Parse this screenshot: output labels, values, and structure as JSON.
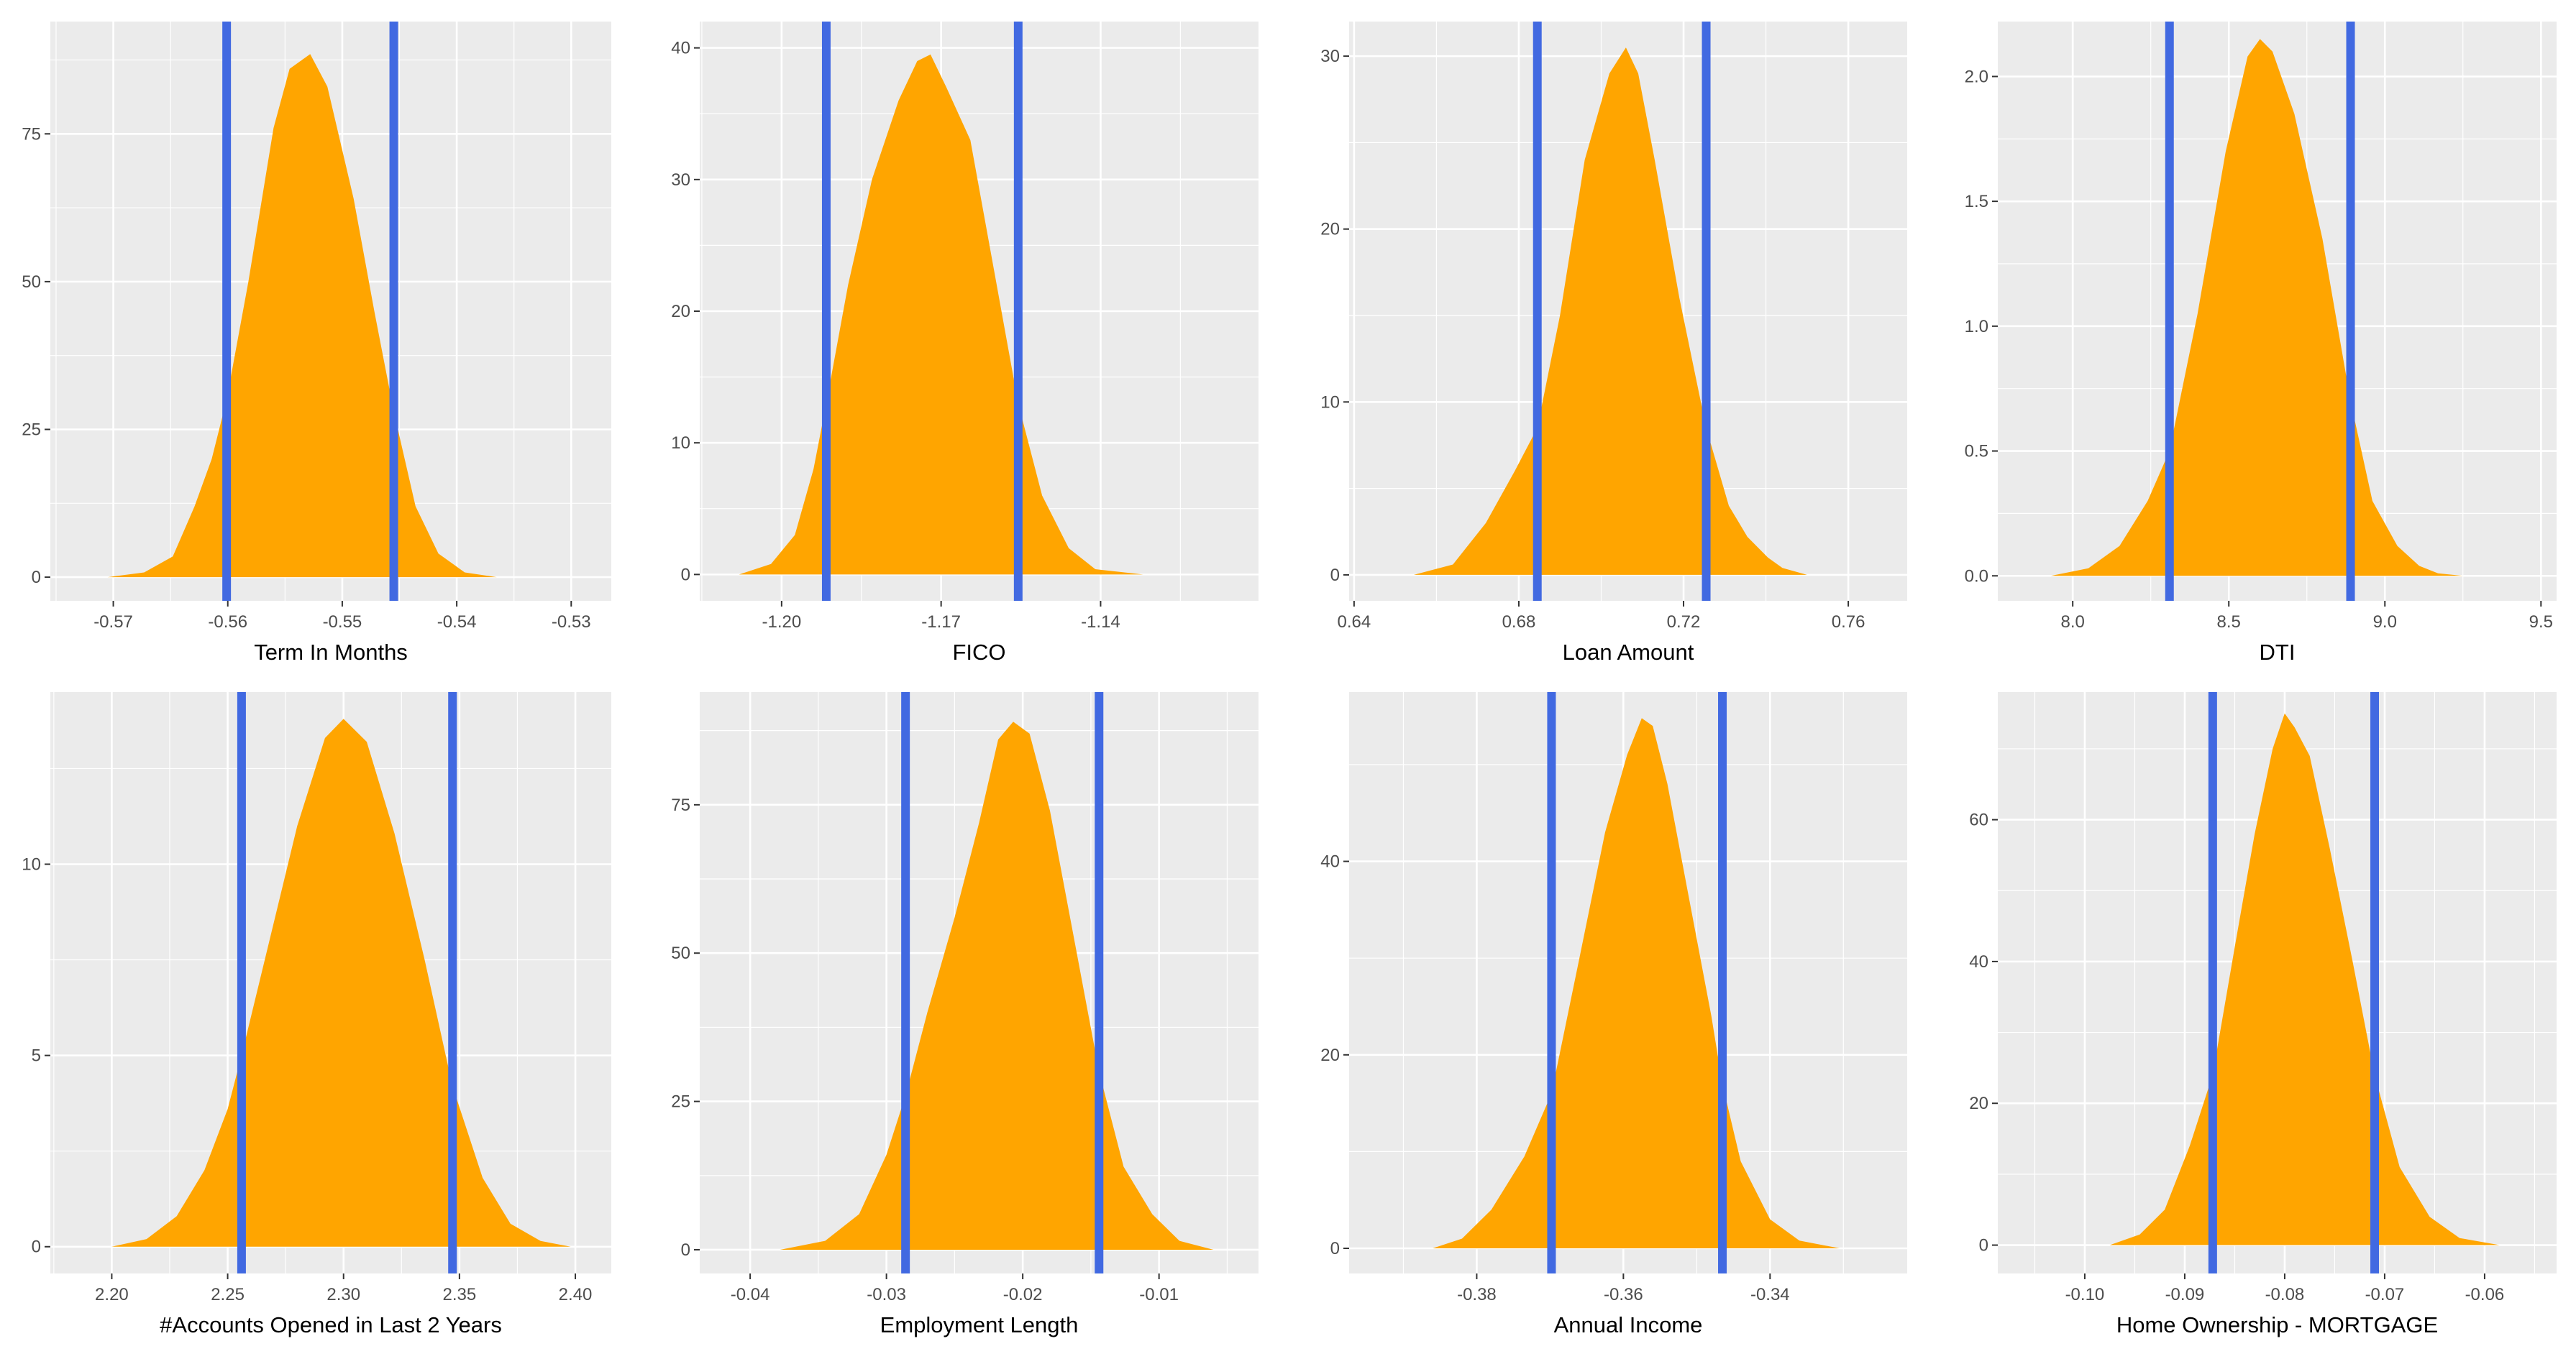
{
  "colors": {
    "density": "#ffa500",
    "ci_lines": "#4169e1",
    "panel": "#ebebeb",
    "grid": "#ffffff"
  },
  "chart_data": [
    {
      "type": "area",
      "xlabel": "Term In Months",
      "xticks": [
        -0.57,
        -0.56,
        -0.55,
        -0.54,
        -0.53
      ],
      "xtick_labels": [
        "-0.57",
        "-0.56",
        "-0.55",
        "-0.54",
        "-0.53"
      ],
      "yticks": [
        0,
        25,
        50,
        75
      ],
      "ytick_labels": [
        "0",
        "25",
        "50",
        "75"
      ],
      "xlim": [
        -0.5755,
        -0.5265
      ],
      "ylim": [
        -4,
        94
      ],
      "ci": [
        -0.5601,
        -0.5455
      ],
      "x": [
        -0.5705,
        -0.5673,
        -0.5648,
        -0.5629,
        -0.5614,
        -0.5601,
        -0.5582,
        -0.556,
        -0.5546,
        -0.5528,
        -0.5513,
        -0.549,
        -0.5472,
        -0.5455,
        -0.5436,
        -0.5416,
        -0.5393,
        -0.5365
      ],
      "y": [
        0,
        0.8,
        3.5,
        12,
        20,
        30,
        50,
        76,
        86,
        88.5,
        83,
        64,
        45,
        28,
        12,
        4,
        0.8,
        0
      ]
    },
    {
      "type": "area",
      "xlabel": "FICO",
      "xticks": [
        -1.2,
        -1.17,
        -1.14
      ],
      "xtick_labels": [
        "-1.20",
        "-1.17",
        "-1.14"
      ],
      "yticks": [
        0,
        10,
        20,
        30,
        40
      ],
      "ytick_labels": [
        "0",
        "10",
        "20",
        "30",
        "40"
      ],
      "xlim": [
        -1.2154,
        -1.1103
      ],
      "ylim": [
        -2,
        42
      ],
      "ci": [
        -1.1916,
        -1.1555
      ],
      "x": [
        -1.208,
        -1.202,
        -1.1975,
        -1.194,
        -1.1916,
        -1.1875,
        -1.183,
        -1.178,
        -1.1745,
        -1.172,
        -1.169,
        -1.1645,
        -1.16,
        -1.1555,
        -1.151,
        -1.146,
        -1.141,
        -1.132
      ],
      "y": [
        0,
        0.8,
        3,
        8,
        13,
        22,
        30,
        36,
        39,
        39.5,
        37,
        33,
        23,
        13,
        6,
        2,
        0.4,
        0
      ]
    },
    {
      "type": "area",
      "xlabel": "Loan Amount",
      "xticks": [
        0.64,
        0.68,
        0.72,
        0.76
      ],
      "xtick_labels": [
        "0.64",
        "0.68",
        "0.72",
        "0.76"
      ],
      "yticks": [
        0,
        10,
        20,
        30
      ],
      "ytick_labels": [
        "0",
        "10",
        "20",
        "30"
      ],
      "xlim": [
        0.6388,
        0.7743
      ],
      "ylim": [
        -1.5,
        32
      ],
      "ci": [
        0.6845,
        0.7255
      ],
      "x": [
        0.6545,
        0.664,
        0.672,
        0.679,
        0.6845,
        0.69,
        0.696,
        0.702,
        0.706,
        0.709,
        0.713,
        0.719,
        0.7255,
        0.731,
        0.7355,
        0.7405,
        0.744,
        0.75
      ],
      "y": [
        0,
        0.6,
        3,
        6,
        8.5,
        15,
        24,
        29,
        30.5,
        29,
        24,
        16,
        8.5,
        4,
        2.2,
        1,
        0.4,
        0
      ]
    },
    {
      "type": "area",
      "xlabel": "DTI",
      "xticks": [
        8.0,
        8.5,
        9.0,
        9.5
      ],
      "xtick_labels": [
        "8.0",
        "8.5",
        "9.0",
        "9.5"
      ],
      "yticks": [
        0.0,
        0.5,
        1.0,
        1.5,
        2.0
      ],
      "ytick_labels": [
        "0.0",
        "0.5",
        "1.0",
        "1.5",
        "2.0"
      ],
      "xlim": [
        7.76,
        9.55
      ],
      "ylim": [
        -0.1,
        2.22
      ],
      "ci": [
        8.31,
        8.89
      ],
      "x": [
        7.93,
        8.05,
        8.15,
        8.24,
        8.31,
        8.4,
        8.49,
        8.56,
        8.6,
        8.64,
        8.71,
        8.8,
        8.89,
        8.96,
        9.04,
        9.11,
        9.17,
        9.25
      ],
      "y": [
        0,
        0.03,
        0.12,
        0.3,
        0.5,
        1.05,
        1.7,
        2.08,
        2.15,
        2.1,
        1.85,
        1.35,
        0.7,
        0.3,
        0.12,
        0.04,
        0.01,
        0
      ]
    },
    {
      "type": "area",
      "xlabel": "#Accounts Opened in Last 2 Years",
      "xticks": [
        2.2,
        2.25,
        2.3,
        2.35,
        2.4
      ],
      "xtick_labels": [
        "2.20",
        "2.25",
        "2.30",
        "2.35",
        "2.40"
      ],
      "yticks": [
        0,
        5,
        10
      ],
      "ytick_labels": [
        "0",
        "5",
        "10"
      ],
      "xlim": [
        2.1735,
        2.4155
      ],
      "ylim": [
        -0.7,
        14.5
      ],
      "ci": [
        2.256,
        2.347
      ],
      "x": [
        2.2,
        2.215,
        2.228,
        2.24,
        2.25,
        2.256,
        2.268,
        2.28,
        2.292,
        2.3,
        2.31,
        2.322,
        2.335,
        2.347,
        2.36,
        2.372,
        2.385,
        2.398
      ],
      "y": [
        0,
        0.2,
        0.8,
        2,
        3.6,
        5,
        8,
        11,
        13.3,
        13.8,
        13.2,
        10.8,
        7.5,
        4.2,
        1.8,
        0.6,
        0.15,
        0
      ]
    },
    {
      "type": "area",
      "xlabel": "Employment Length",
      "xticks": [
        -0.04,
        -0.03,
        -0.02,
        -0.01
      ],
      "xtick_labels": [
        "-0.04",
        "-0.03",
        "-0.02",
        "-0.01"
      ],
      "yticks": [
        0,
        25,
        50,
        75
      ],
      "ytick_labels": [
        "0",
        "25",
        "50",
        "75"
      ],
      "xlim": [
        -0.0437,
        -0.0027
      ],
      "ylim": [
        -4,
        94
      ],
      "ci": [
        -0.0286,
        -0.0144
      ],
      "x": [
        -0.0378,
        -0.0345,
        -0.032,
        -0.03,
        -0.0286,
        -0.027,
        -0.025,
        -0.0232,
        -0.0218,
        -0.0207,
        -0.0195,
        -0.018,
        -0.0162,
        -0.0144,
        -0.0126,
        -0.0105,
        -0.0085,
        -0.006
      ],
      "y": [
        0,
        1.5,
        6,
        16,
        26,
        40,
        56,
        72,
        86,
        89,
        87,
        74,
        52,
        30,
        14,
        6,
        1.5,
        0
      ]
    },
    {
      "type": "area",
      "xlabel": "Annual Income",
      "xticks": [
        -0.38,
        -0.36,
        -0.34
      ],
      "xtick_labels": [
        "-0.38",
        "-0.36",
        "-0.34"
      ],
      "yticks": [
        0,
        20,
        40
      ],
      "ytick_labels": [
        "0",
        "20",
        "40"
      ],
      "xlim": [
        -0.3974,
        -0.3213
      ],
      "ylim": [
        -2.6,
        57.5
      ],
      "ci": [
        -0.3698,
        -0.3465
      ],
      "x": [
        -0.386,
        -0.382,
        -0.378,
        -0.3735,
        -0.3698,
        -0.366,
        -0.3625,
        -0.3595,
        -0.3575,
        -0.356,
        -0.354,
        -0.351,
        -0.348,
        -0.3465,
        -0.344,
        -0.34,
        -0.336,
        -0.3305
      ],
      "y": [
        0,
        1,
        4,
        9.5,
        16,
        30,
        43,
        51,
        54.8,
        54,
        48,
        36,
        24,
        17,
        9,
        3,
        0.8,
        0
      ]
    },
    {
      "type": "area",
      "xlabel": "Home Ownership - MORTGAGE",
      "xticks": [
        -0.1,
        -0.09,
        -0.08,
        -0.07,
        -0.06
      ],
      "xtick_labels": [
        "-0.10",
        "-0.09",
        "-0.08",
        "-0.07",
        "-0.06"
      ],
      "yticks": [
        0,
        20,
        40,
        60
      ],
      "ytick_labels": [
        "0",
        "20",
        "40",
        "60"
      ],
      "xlim": [
        -0.1087,
        -0.0528
      ],
      "ylim": [
        -4,
        78
      ],
      "ci": [
        -0.0872,
        -0.071
      ],
      "x": [
        -0.0975,
        -0.0945,
        -0.092,
        -0.0895,
        -0.0872,
        -0.085,
        -0.083,
        -0.0812,
        -0.08,
        -0.079,
        -0.0775,
        -0.0755,
        -0.0732,
        -0.071,
        -0.0685,
        -0.0655,
        -0.0625,
        -0.0585
      ],
      "y": [
        0,
        1.5,
        5,
        14,
        24,
        42,
        58,
        70,
        75,
        73,
        69,
        56,
        40,
        24,
        11,
        4,
        1,
        0
      ]
    }
  ]
}
